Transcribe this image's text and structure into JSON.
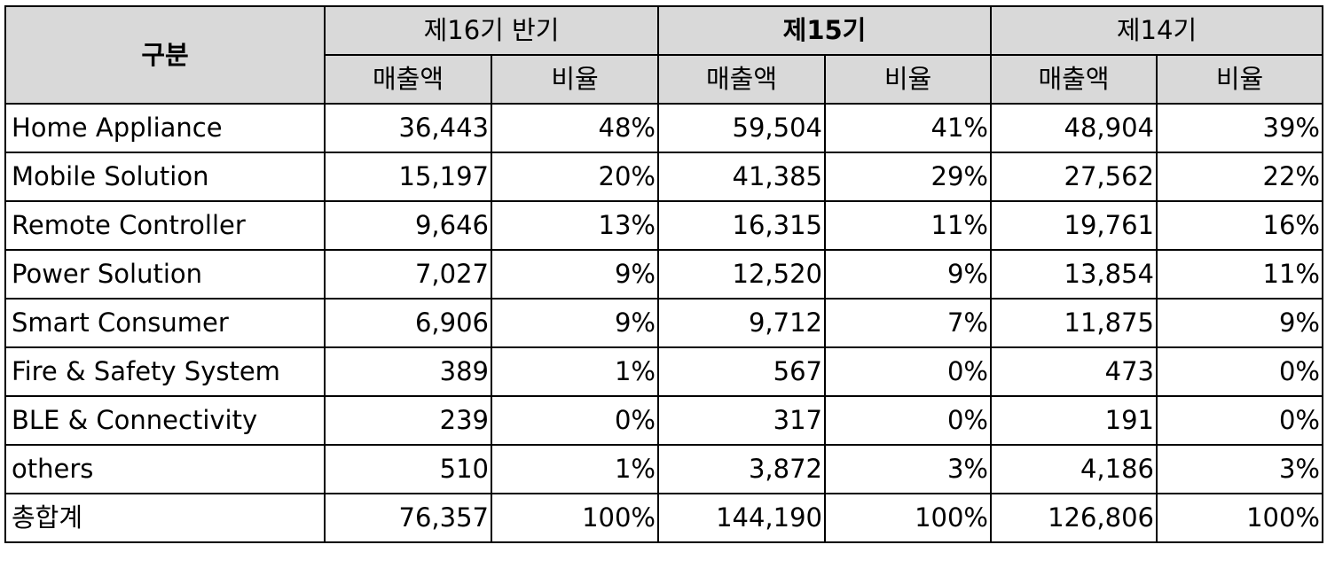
{
  "header": {
    "category": "구분",
    "periods": [
      "제16기 반기",
      "제15기",
      "제14기"
    ],
    "sales": "매출액",
    "ratio": "비율"
  },
  "rows": [
    {
      "name": "Home Appliance",
      "values": [
        "36,443",
        "48%",
        "59,504",
        "41%",
        "48,904",
        "39%"
      ]
    },
    {
      "name": "Mobile Solution",
      "values": [
        "15,197",
        "20%",
        "41,385",
        "29%",
        "27,562",
        "22%"
      ]
    },
    {
      "name": "Remote Controller",
      "values": [
        "9,646",
        "13%",
        "16,315",
        "11%",
        "19,761",
        "16%"
      ]
    },
    {
      "name": "Power Solution",
      "values": [
        "7,027",
        "9%",
        "12,520",
        "9%",
        "13,854",
        "11%"
      ]
    },
    {
      "name": "Smart Consumer",
      "values": [
        "6,906",
        "9%",
        "9,712",
        "7%",
        "11,875",
        "9%"
      ]
    },
    {
      "name": "Fire & Safety System",
      "values": [
        "389",
        "1%",
        "567",
        "0%",
        "473",
        "0%"
      ]
    },
    {
      "name": "BLE & Connectivity",
      "values": [
        "239",
        "0%",
        "317",
        "0%",
        "191",
        "0%"
      ]
    },
    {
      "name": "others",
      "values": [
        "510",
        "1%",
        "3,872",
        "3%",
        "4,186",
        "3%"
      ]
    },
    {
      "name": "총합계",
      "values": [
        "76,357",
        "100%",
        "144,190",
        "100%",
        "126,806",
        "100%"
      ]
    }
  ]
}
